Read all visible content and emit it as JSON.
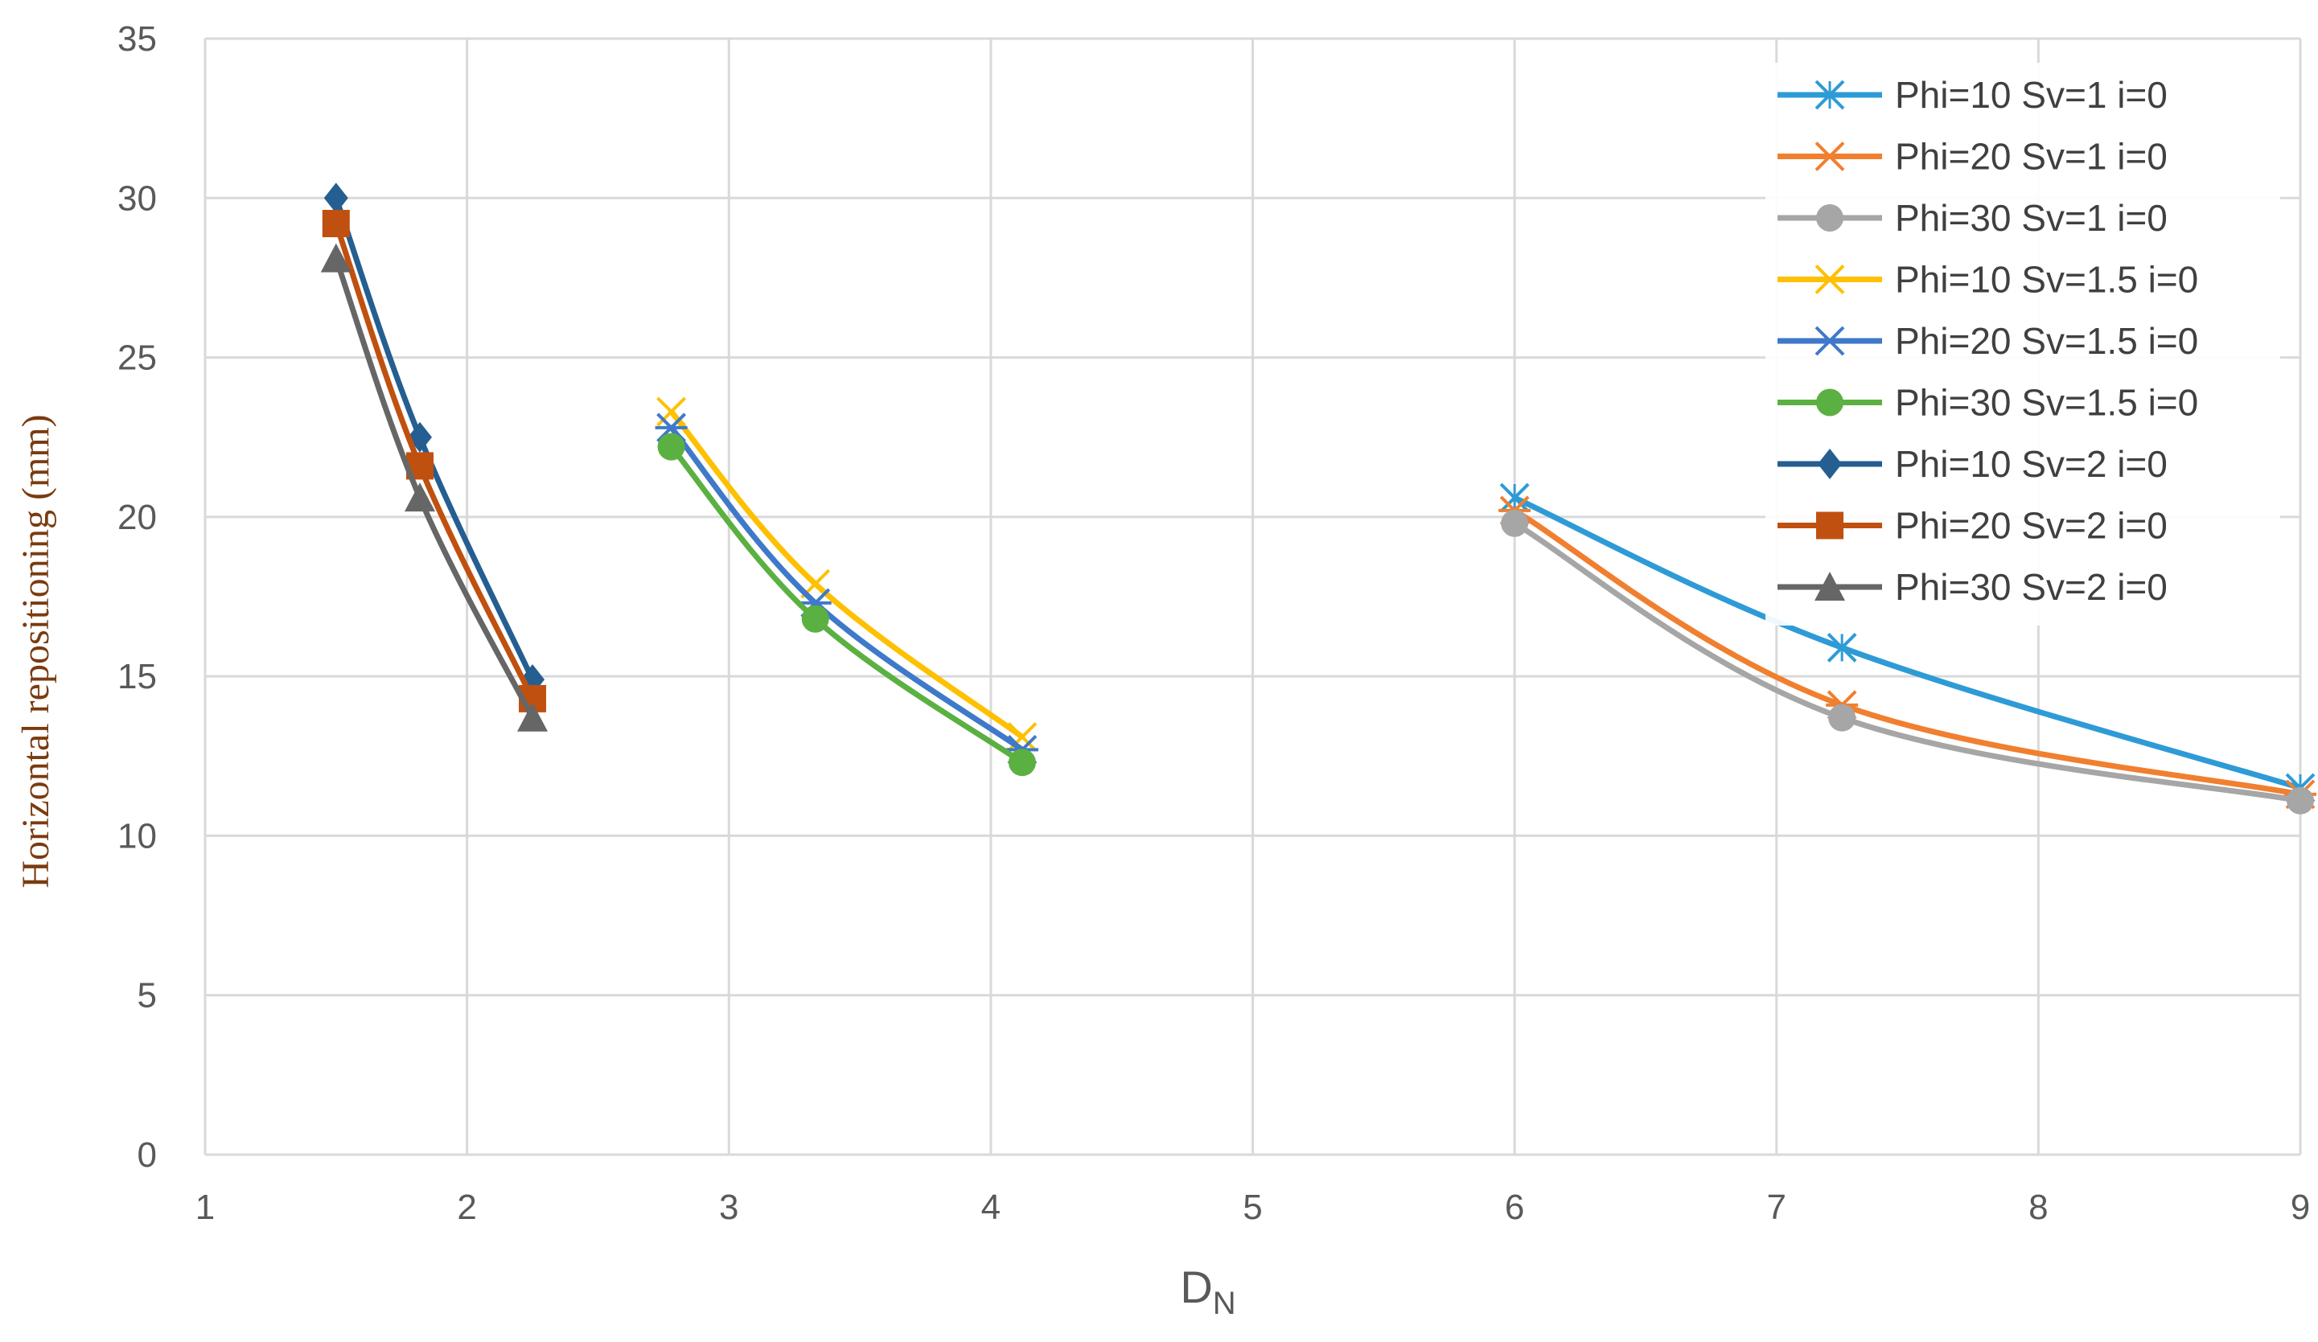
{
  "chart_data": {
    "type": "line",
    "xlabel": "D",
    "xlabel_sub": "N",
    "ylabel": "Horizontal repositioning (mm)",
    "xlim": [
      1,
      9
    ],
    "ylim": [
      0,
      35
    ],
    "xticks": [
      1,
      2,
      3,
      4,
      5,
      6,
      7,
      8,
      9
    ],
    "yticks": [
      0,
      5,
      10,
      15,
      20,
      25,
      30,
      35
    ],
    "grid": true,
    "legend_position": "top-right",
    "series": [
      {
        "name": "Phi=10 Sv=1 i=0",
        "color": "#2e9bd6",
        "marker": "x-star",
        "x": [
          6,
          7.25,
          9
        ],
        "y": [
          20.6,
          15.9,
          11.5
        ]
      },
      {
        "name": "Phi=20 Sv=1 i=0",
        "color": "#f07f2f",
        "marker": "asterisk",
        "x": [
          6,
          7.25,
          9
        ],
        "y": [
          20.2,
          14.1,
          11.3
        ]
      },
      {
        "name": "Phi=30 Sv=1 i=0",
        "color": "#a6a6a6",
        "marker": "circle",
        "x": [
          6,
          7.25,
          9
        ],
        "y": [
          19.8,
          13.7,
          11.1
        ]
      },
      {
        "name": "Phi=10 Sv=1.5 i=0",
        "color": "#fec000",
        "marker": "x",
        "x": [
          2.78,
          3.33,
          4.12
        ],
        "y": [
          23.3,
          17.9,
          13.1
        ]
      },
      {
        "name": "Phi=20 Sv=1.5 i=0",
        "color": "#3f79c9",
        "marker": "asterisk",
        "x": [
          2.78,
          3.33,
          4.12
        ],
        "y": [
          22.8,
          17.3,
          12.7
        ]
      },
      {
        "name": "Phi=30 Sv=1.5 i=0",
        "color": "#5bb042",
        "marker": "circle",
        "x": [
          2.78,
          3.33,
          4.12
        ],
        "y": [
          22.2,
          16.8,
          12.3
        ]
      },
      {
        "name": "Phi=10 Sv=2 i=0",
        "color": "#255e91",
        "marker": "diamond",
        "x": [
          1.5,
          1.82,
          2.25
        ],
        "y": [
          30.0,
          22.5,
          14.9
        ]
      },
      {
        "name": "Phi=20 Sv=2 i=0",
        "color": "#c0500f",
        "marker": "square",
        "x": [
          1.5,
          1.82,
          2.25
        ],
        "y": [
          29.2,
          21.6,
          14.3
        ]
      },
      {
        "name": "Phi=30 Sv=2 i=0",
        "color": "#666666",
        "marker": "triangle",
        "x": [
          1.5,
          1.82,
          2.25
        ],
        "y": [
          28.1,
          20.6,
          13.7
        ]
      }
    ]
  }
}
